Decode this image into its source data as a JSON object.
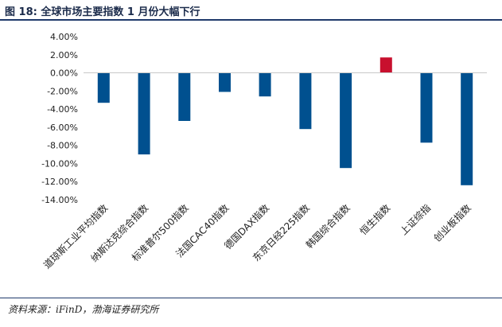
{
  "figure": {
    "title": "图 18:  全球市场主要指数 1 月份大幅下行",
    "source": "资料来源：iFinD，渤海证券研究所"
  },
  "chart_data": {
    "type": "bar",
    "categories": [
      "道琼斯工业平均指数",
      "纳斯达克综合指数",
      "标准普尔500指数",
      "法国CAC40指数",
      "德国DAX指数",
      "东京日经225指数",
      "韩国综合指数",
      "恒生指数",
      "上证综指",
      "创业板指数"
    ],
    "values": [
      -3.3,
      -9.0,
      -5.3,
      -2.1,
      -2.6,
      -6.2,
      -10.5,
      1.7,
      -7.7,
      -12.4
    ],
    "ylim": [
      -14,
      4
    ],
    "yticks": [
      "4.00%",
      "2.00%",
      "0.00%",
      "-2.00%",
      "-4.00%",
      "-6.00%",
      "-8.00%",
      "-10.00%",
      "-12.00%",
      "-14.00%"
    ],
    "xlabel": "",
    "ylabel": "",
    "grid": false,
    "colors": {
      "negative": "#00508f",
      "positive": "#c8102e",
      "axis": "#c8c8c8"
    }
  }
}
